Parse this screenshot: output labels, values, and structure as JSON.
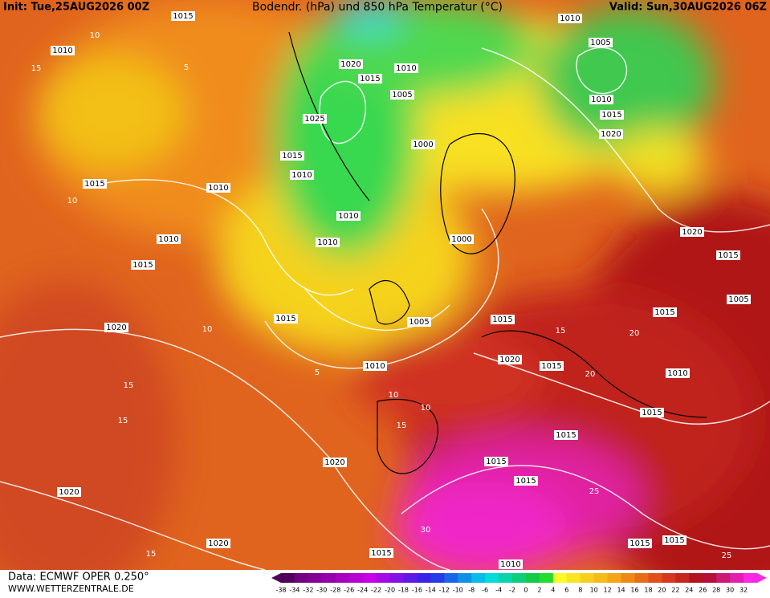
{
  "header": {
    "init": "Init: Tue,25AUG2026 00Z",
    "title": "Bodendr. (hPa) und 850 hPa Temperatur (°C)",
    "valid": "Valid: Sun,30AUG2026 06Z"
  },
  "footer": {
    "data": "Data: ECMWF OPER 0.250°",
    "site": "WWW.WETTERZENTRALE.DE"
  },
  "colorbar": {
    "ticks": [
      -38,
      -34,
      -32,
      -30,
      -28,
      -26,
      -24,
      -22,
      -20,
      -18,
      -16,
      -14,
      -12,
      -10,
      -8,
      -6,
      -4,
      -2,
      0,
      2,
      4,
      6,
      8,
      10,
      12,
      14,
      16,
      18,
      20,
      22,
      24,
      26,
      28,
      30,
      32
    ]
  },
  "isobar_labels": [
    "1010",
    "1015",
    "1010",
    "1005",
    "1020",
    "1010",
    "1015",
    "1005",
    "1010",
    "1015",
    "1025",
    "1020",
    "1000",
    "1015",
    "1010",
    "1015",
    "1010",
    "1010",
    "1010",
    "1000",
    "1010",
    "1020",
    "1015",
    "1015",
    "1005",
    "1015",
    "1005",
    "1015",
    "1015",
    "1020",
    "1020",
    "1015",
    "1010",
    "1010",
    "1015",
    "1015",
    "1020",
    "1015",
    "1015",
    "1020",
    "1020",
    "1015",
    "1015",
    "1015",
    "1010"
  ],
  "temperature_labels": [
    "10",
    "15",
    "10",
    "5",
    "10",
    "10",
    "15",
    "5",
    "10",
    "15",
    "20",
    "15",
    "25",
    "30",
    "25",
    "15",
    "15",
    "20"
  ]
}
